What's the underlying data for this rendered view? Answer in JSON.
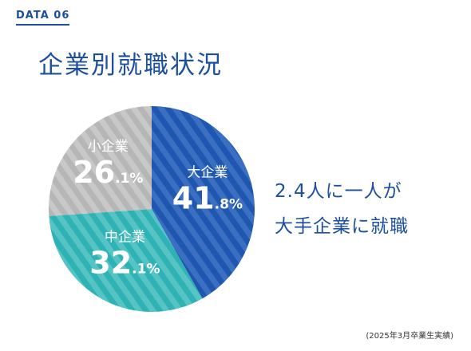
{
  "header": {
    "data_label": "DATA 06",
    "title": "企業別就職状況"
  },
  "callout": {
    "line1": "2.4人に一人が",
    "line2": "大手企業に就職"
  },
  "footnote": "(2025年3月卒業生実績)",
  "colors": {
    "accent": "#1c4fa0",
    "large": "#1e56b0",
    "medium": "#2fb2b4",
    "small": "#b6b6b6"
  },
  "chart_data": {
    "type": "pie",
    "unit": "%",
    "slices": [
      {
        "label": "大企業",
        "value": 41.8,
        "int_text": "41",
        "dec_text": ".8%",
        "color": "#1e56b0",
        "stripe": "#3a6fc2"
      },
      {
        "label": "中企業",
        "value": 32.1,
        "int_text": "32",
        "dec_text": ".1%",
        "color": "#2fb2b4",
        "stripe": "#56c4c5"
      },
      {
        "label": "小企業",
        "value": 26.1,
        "int_text": "26",
        "dec_text": ".1%",
        "color": "#b6b6b6",
        "stripe": "#c8c8c8"
      }
    ]
  }
}
